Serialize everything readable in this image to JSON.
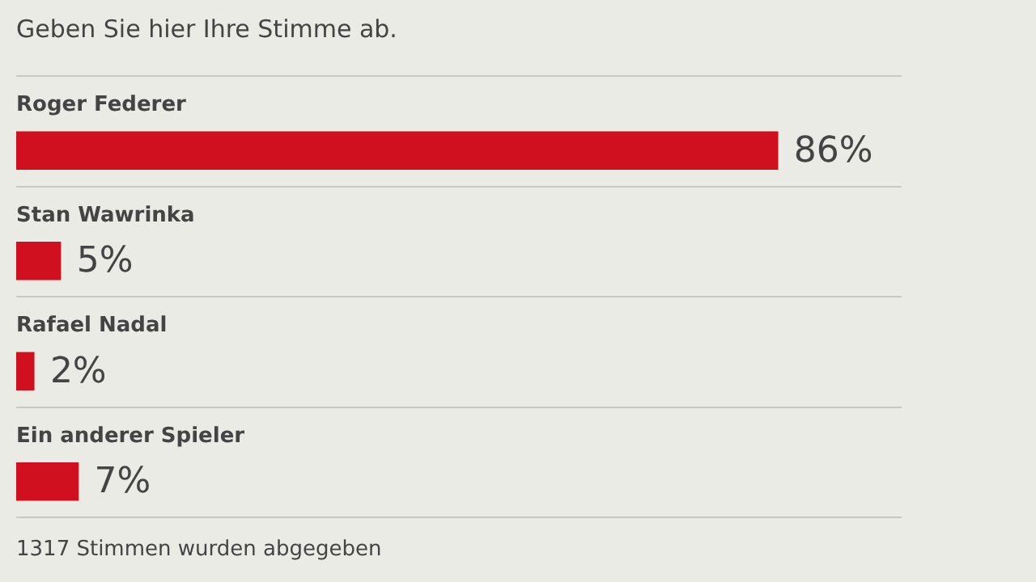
{
  "chart_data": {
    "type": "bar",
    "orientation": "horizontal",
    "title": "Geben Sie hier Ihre Stimme ab.",
    "categories": [
      "Roger Federer",
      "Stan Wawrinka",
      "Rafael Nadal",
      "Ein anderer Spieler"
    ],
    "values": [
      86,
      5,
      2,
      7
    ],
    "value_labels": [
      "86%",
      "5%",
      "2%",
      "7%"
    ],
    "color": "#d0101f",
    "xlim": [
      0,
      100
    ],
    "grid": "y",
    "legend": false,
    "annotations": [
      "1317 Stimmen wurden abgegeben"
    ]
  }
}
